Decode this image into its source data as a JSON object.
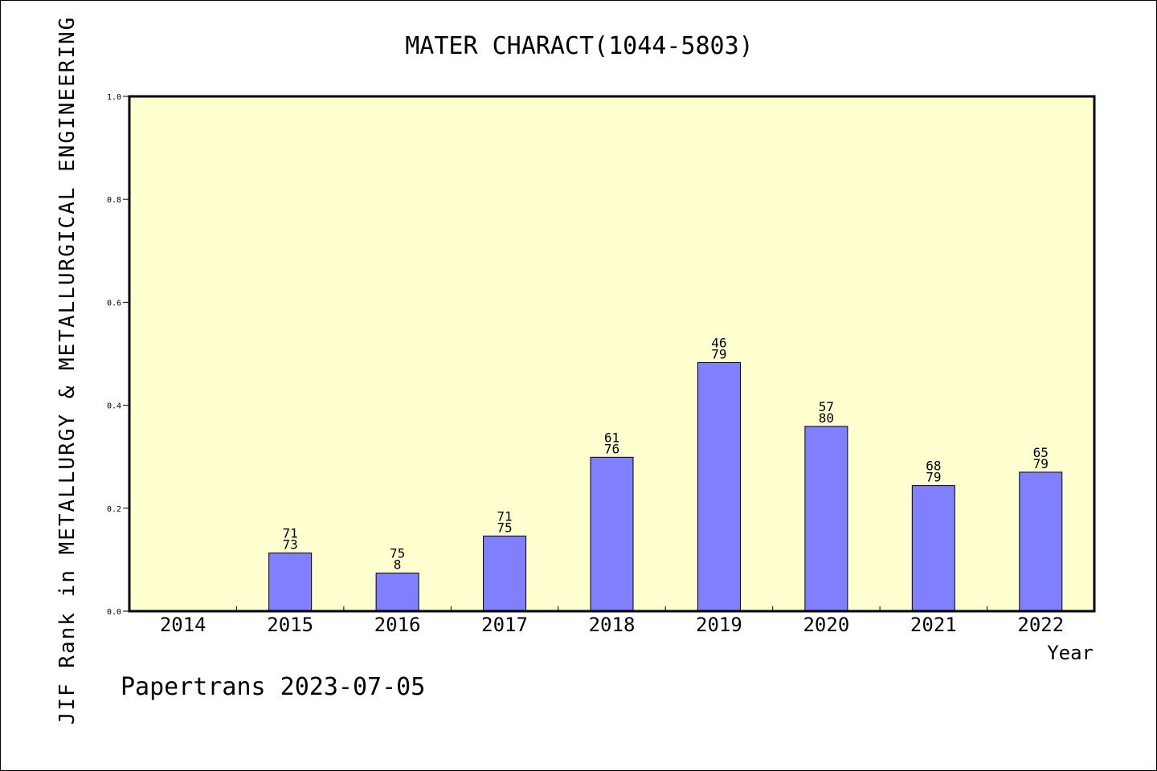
{
  "chart_data": {
    "type": "bar",
    "title": "MATER CHARACT(1044-5803)",
    "xlabel": "Year",
    "ylabel": "JIF Rank in METALLURGY & METALLURGICAL ENGINEERING",
    "ylim": [
      0,
      1.0
    ],
    "yticks": [
      "0.0",
      "0.2",
      "0.4",
      "0.6",
      "0.8",
      "1.0"
    ],
    "categories": [
      "2014",
      "2015",
      "2016",
      "2017",
      "2018",
      "2019",
      "2020",
      "2021",
      "2022"
    ],
    "values": [
      null,
      0.113,
      0.074,
      0.146,
      0.299,
      0.483,
      0.359,
      0.244,
      0.27
    ],
    "labels": [
      null,
      [
        "71",
        "73"
      ],
      [
        "75",
        "8"
      ],
      [
        "71",
        "75"
      ],
      [
        "61",
        "76"
      ],
      [
        "46",
        "79"
      ],
      [
        "57",
        "80"
      ],
      [
        "68",
        "79"
      ],
      [
        "65",
        "79"
      ]
    ],
    "grid": false,
    "colors": {
      "plot_background": "#ffffd0",
      "bar": "#8080ff"
    }
  },
  "footer": {
    "text": "Papertrans 2023-07-05"
  }
}
